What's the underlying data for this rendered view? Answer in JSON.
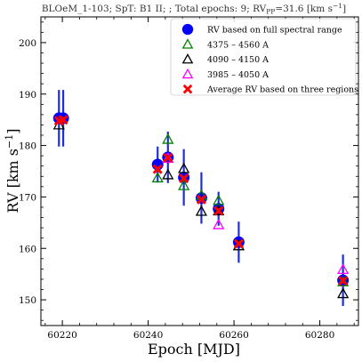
{
  "chart_data": {
    "type": "scatter",
    "title_main": "BLOeM_1-103; SpT: B1 II; ; Total epochs: 9; RV",
    "title_sub": "PP",
    "title_tail": "=31.6 [km s",
    "title_sup": "−1",
    "title_end": "]",
    "xlabel": "Epoch [MJD]",
    "ylabel_main": "RV [km s",
    "ylabel_sup": "−1",
    "ylabel_end": "]",
    "xlim": [
      60215,
      60289
    ],
    "ylim": [
      145,
      205
    ],
    "xticks": [
      60220,
      60240,
      60260,
      60280
    ],
    "yticks": [
      150,
      160,
      170,
      180,
      190,
      200
    ],
    "legend_position": "top-right",
    "series": [
      {
        "name": "RV based on full spectral range",
        "marker": "circle",
        "color": "#0000ff",
        "points": [
          {
            "x": 60219.2,
            "y": 185.3,
            "err": 5.5
          },
          {
            "x": 60220.2,
            "y": 185.3,
            "err": 5.5
          },
          {
            "x": 60242.2,
            "y": 176.3,
            "err": 3.5
          },
          {
            "x": 60244.6,
            "y": 177.7,
            "err": 5.0
          },
          {
            "x": 60248.3,
            "y": 173.8,
            "err": 5.5
          },
          {
            "x": 60252.4,
            "y": 169.8,
            "err": 5.0
          },
          {
            "x": 60256.4,
            "y": 167.7,
            "err": 3.3
          },
          {
            "x": 60261.1,
            "y": 161.2,
            "err": 4.0
          },
          {
            "x": 60285.4,
            "y": 153.8,
            "err": 5.0
          }
        ]
      },
      {
        "name": "4375 – 4560 A",
        "marker": "triangle",
        "color": "#008000",
        "points": [
          {
            "x": 60242.2,
            "y": 173.7
          },
          {
            "x": 60244.6,
            "y": 181.2
          },
          {
            "x": 60248.3,
            "y": 172.2
          },
          {
            "x": 60252.4,
            "y": 170.3
          },
          {
            "x": 60256.4,
            "y": 169.3
          },
          {
            "x": 60261.1,
            "y": 160.5
          },
          {
            "x": 60285.4,
            "y": 153.5
          }
        ]
      },
      {
        "name": "4090 – 4150 A",
        "marker": "triangle",
        "color": "#000000",
        "points": [
          {
            "x": 60219.2,
            "y": 184.0
          },
          {
            "x": 60244.6,
            "y": 174.3
          },
          {
            "x": 60248.3,
            "y": 175.5
          },
          {
            "x": 60252.4,
            "y": 167.2
          },
          {
            "x": 60256.4,
            "y": 167.3
          },
          {
            "x": 60261.1,
            "y": 160.5
          },
          {
            "x": 60285.4,
            "y": 151.2
          }
        ]
      },
      {
        "name": "3985 – 4050 A",
        "marker": "triangle",
        "color": "#ff00ff",
        "points": [
          {
            "x": 60244.6,
            "y": 177.5
          },
          {
            "x": 60256.4,
            "y": 164.6
          },
          {
            "x": 60285.4,
            "y": 155.9
          }
        ]
      },
      {
        "name": "Average RV based on three regions",
        "marker": "x",
        "color": "#ff0000",
        "points": [
          {
            "x": 60219.2,
            "y": 184.8
          },
          {
            "x": 60220.2,
            "y": 185.0
          },
          {
            "x": 60242.2,
            "y": 175.4
          },
          {
            "x": 60244.6,
            "y": 177.6
          },
          {
            "x": 60248.3,
            "y": 173.6
          },
          {
            "x": 60252.4,
            "y": 169.5
          },
          {
            "x": 60256.4,
            "y": 167.3
          },
          {
            "x": 60261.1,
            "y": 160.9
          },
          {
            "x": 60285.4,
            "y": 153.7
          }
        ]
      }
    ]
  }
}
